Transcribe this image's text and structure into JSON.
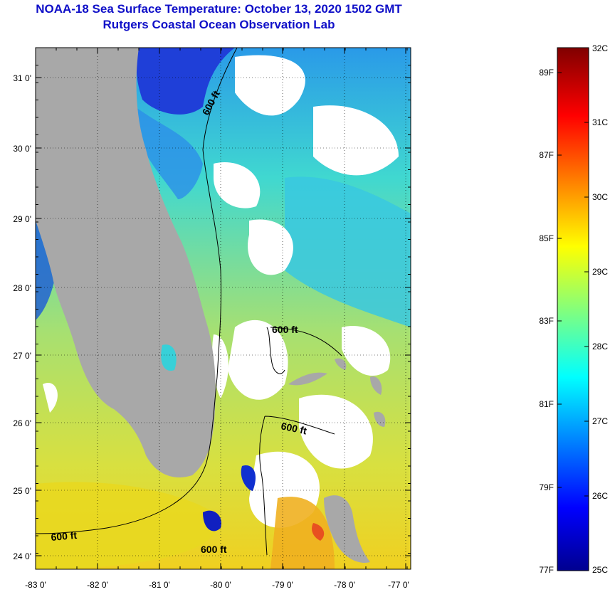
{
  "title": "NOAA-18 Sea Surface Temperature:  October 13, 2020 1502 GMT",
  "subtitle": "Rutgers Coastal Ocean Observation Lab",
  "map": {
    "lat_labels": [
      "31 0'",
      "30 0'",
      "29 0'",
      "28 0'",
      "27 0'",
      "26 0'",
      "25 0'",
      "24 0'"
    ],
    "lon_labels": [
      "-83 0'",
      "-82 0'",
      "-81 0'",
      "-80 0'",
      "-79 0'",
      "-78 0'",
      "-77 0'"
    ],
    "contour_labels": [
      "600 ft",
      "600 ft",
      "600 ft",
      "600 ft",
      "600 ft"
    ],
    "colors": {
      "land": "#a8a8a8",
      "cloud": "#ffffff",
      "ocean_cool": "#30d0e0",
      "ocean_warm": "#e8e830"
    }
  },
  "colorbar": {
    "celsius_labels": [
      "32C",
      "31C",
      "30C",
      "29C",
      "28C",
      "27C",
      "26C",
      "25C"
    ],
    "fahrenheit_labels": [
      "89F",
      "87F",
      "85F",
      "83F",
      "81F",
      "79F",
      "77F"
    ],
    "range_c": [
      25,
      32
    ]
  }
}
